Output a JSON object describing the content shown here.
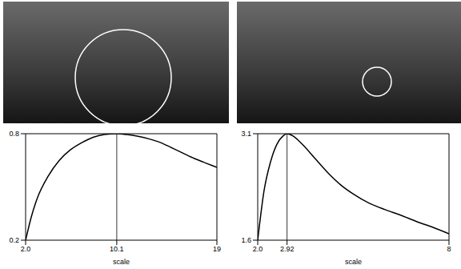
{
  "chart_data": [
    {
      "type": "line",
      "xlabel": "scale",
      "x": [
        2,
        2.5,
        3,
        4,
        5,
        6,
        7,
        8,
        9,
        10.1,
        11,
        12,
        13,
        14,
        15,
        16,
        17,
        18,
        19
      ],
      "values": [
        0.2,
        0.33,
        0.43,
        0.56,
        0.65,
        0.71,
        0.75,
        0.78,
        0.795,
        0.8,
        0.795,
        0.785,
        0.77,
        0.75,
        0.72,
        0.69,
        0.66,
        0.635,
        0.61
      ],
      "color": "#000000",
      "xlim": [
        2,
        19
      ],
      "xticks": [
        {
          "value": 2,
          "label": "2.0"
        },
        10.1,
        19
      ],
      "ylim": [
        0.2,
        0.8
      ],
      "yticks": [
        0.2,
        0.8
      ],
      "peak": 10.1
    },
    {
      "type": "line",
      "xlabel": "scale",
      "x": [
        2,
        2.2,
        2.4,
        2.6,
        2.8,
        2.92,
        3.1,
        3.4,
        3.8,
        4.2,
        4.6,
        5,
        5.5,
        6,
        6.5,
        7,
        7.5,
        8
      ],
      "values": [
        1.6,
        2.3,
        2.7,
        2.95,
        3.07,
        3.1,
        3.07,
        2.95,
        2.75,
        2.55,
        2.38,
        2.25,
        2.12,
        2.03,
        1.95,
        1.86,
        1.78,
        1.69
      ],
      "color": "#000000",
      "xlim": [
        2,
        8
      ],
      "xticks": [
        {
          "value": 2,
          "label": "2.0"
        },
        2.92,
        8
      ],
      "ylim": [
        1.6,
        3.1
      ],
      "yticks": [
        1.6,
        3.1
      ],
      "peak": 2.92
    }
  ]
}
